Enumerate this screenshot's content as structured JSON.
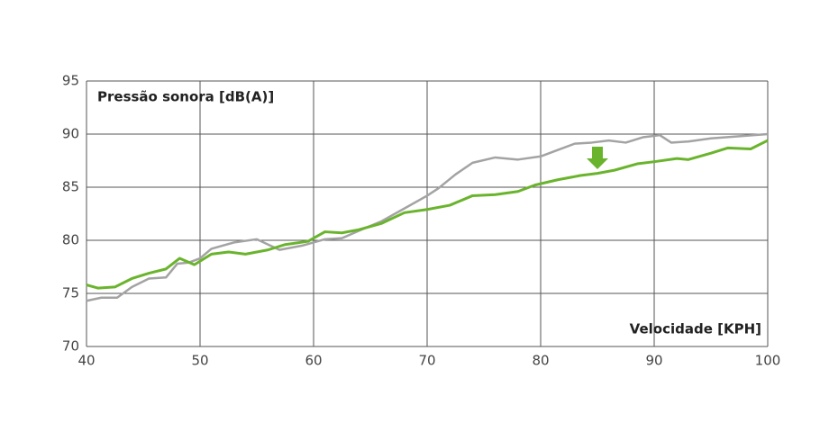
{
  "chart_data": {
    "type": "line",
    "y_label": "Pressão sonora [dB(A)]",
    "x_label": "Velocidade [KPH]",
    "xlim": [
      40,
      100
    ],
    "xticks": [
      40,
      50,
      60,
      70,
      80,
      90,
      100
    ],
    "ylim": [
      70,
      95
    ],
    "yticks": [
      70,
      75,
      80,
      85,
      90,
      95
    ],
    "grid": true,
    "series": [
      {
        "color": "#a3a3a3",
        "x": [
          40,
          41.3,
          42.7,
          44,
          45.5,
          47,
          48,
          49,
          50,
          51,
          53,
          55,
          57,
          59,
          61,
          62.5,
          64,
          66,
          68,
          70,
          71,
          72.5,
          74,
          76,
          78,
          80,
          81.5,
          83,
          84.5,
          86,
          87.5,
          89,
          90.5,
          91.5,
          93,
          95,
          97.5,
          100
        ],
        "values": [
          74.3,
          74.6,
          74.6,
          75.6,
          76.4,
          76.5,
          77.8,
          77.9,
          78.3,
          79.2,
          79.8,
          80.1,
          79.1,
          79.5,
          80.1,
          80.2,
          80.9,
          81.8,
          83.0,
          84.2,
          84.9,
          86.2,
          87.3,
          87.8,
          87.6,
          87.9,
          88.5,
          89.1,
          89.2,
          89.4,
          89.2,
          89.7,
          89.9,
          89.2,
          89.3,
          89.6,
          89.8,
          90.0
        ]
      },
      {
        "color": "#6ab42d",
        "x": [
          40,
          41,
          42.5,
          44,
          45.5,
          47,
          48.2,
          49.5,
          51,
          52.5,
          54,
          56,
          57.5,
          59.5,
          61,
          62.5,
          64,
          66,
          68,
          70,
          72,
          74,
          76,
          78,
          79.5,
          81.5,
          83.5,
          85,
          86.5,
          88.5,
          90,
          92,
          93,
          95,
          96.5,
          98.5,
          100
        ],
        "values": [
          75.8,
          75.5,
          75.6,
          76.4,
          76.9,
          77.3,
          78.3,
          77.7,
          78.7,
          78.9,
          78.7,
          79.1,
          79.6,
          79.9,
          80.8,
          80.7,
          81.0,
          81.6,
          82.6,
          82.9,
          83.3,
          84.2,
          84.3,
          84.6,
          85.2,
          85.7,
          86.1,
          86.3,
          86.6,
          87.2,
          87.4,
          87.7,
          87.6,
          88.2,
          88.7,
          88.6,
          89.4
        ]
      }
    ]
  }
}
